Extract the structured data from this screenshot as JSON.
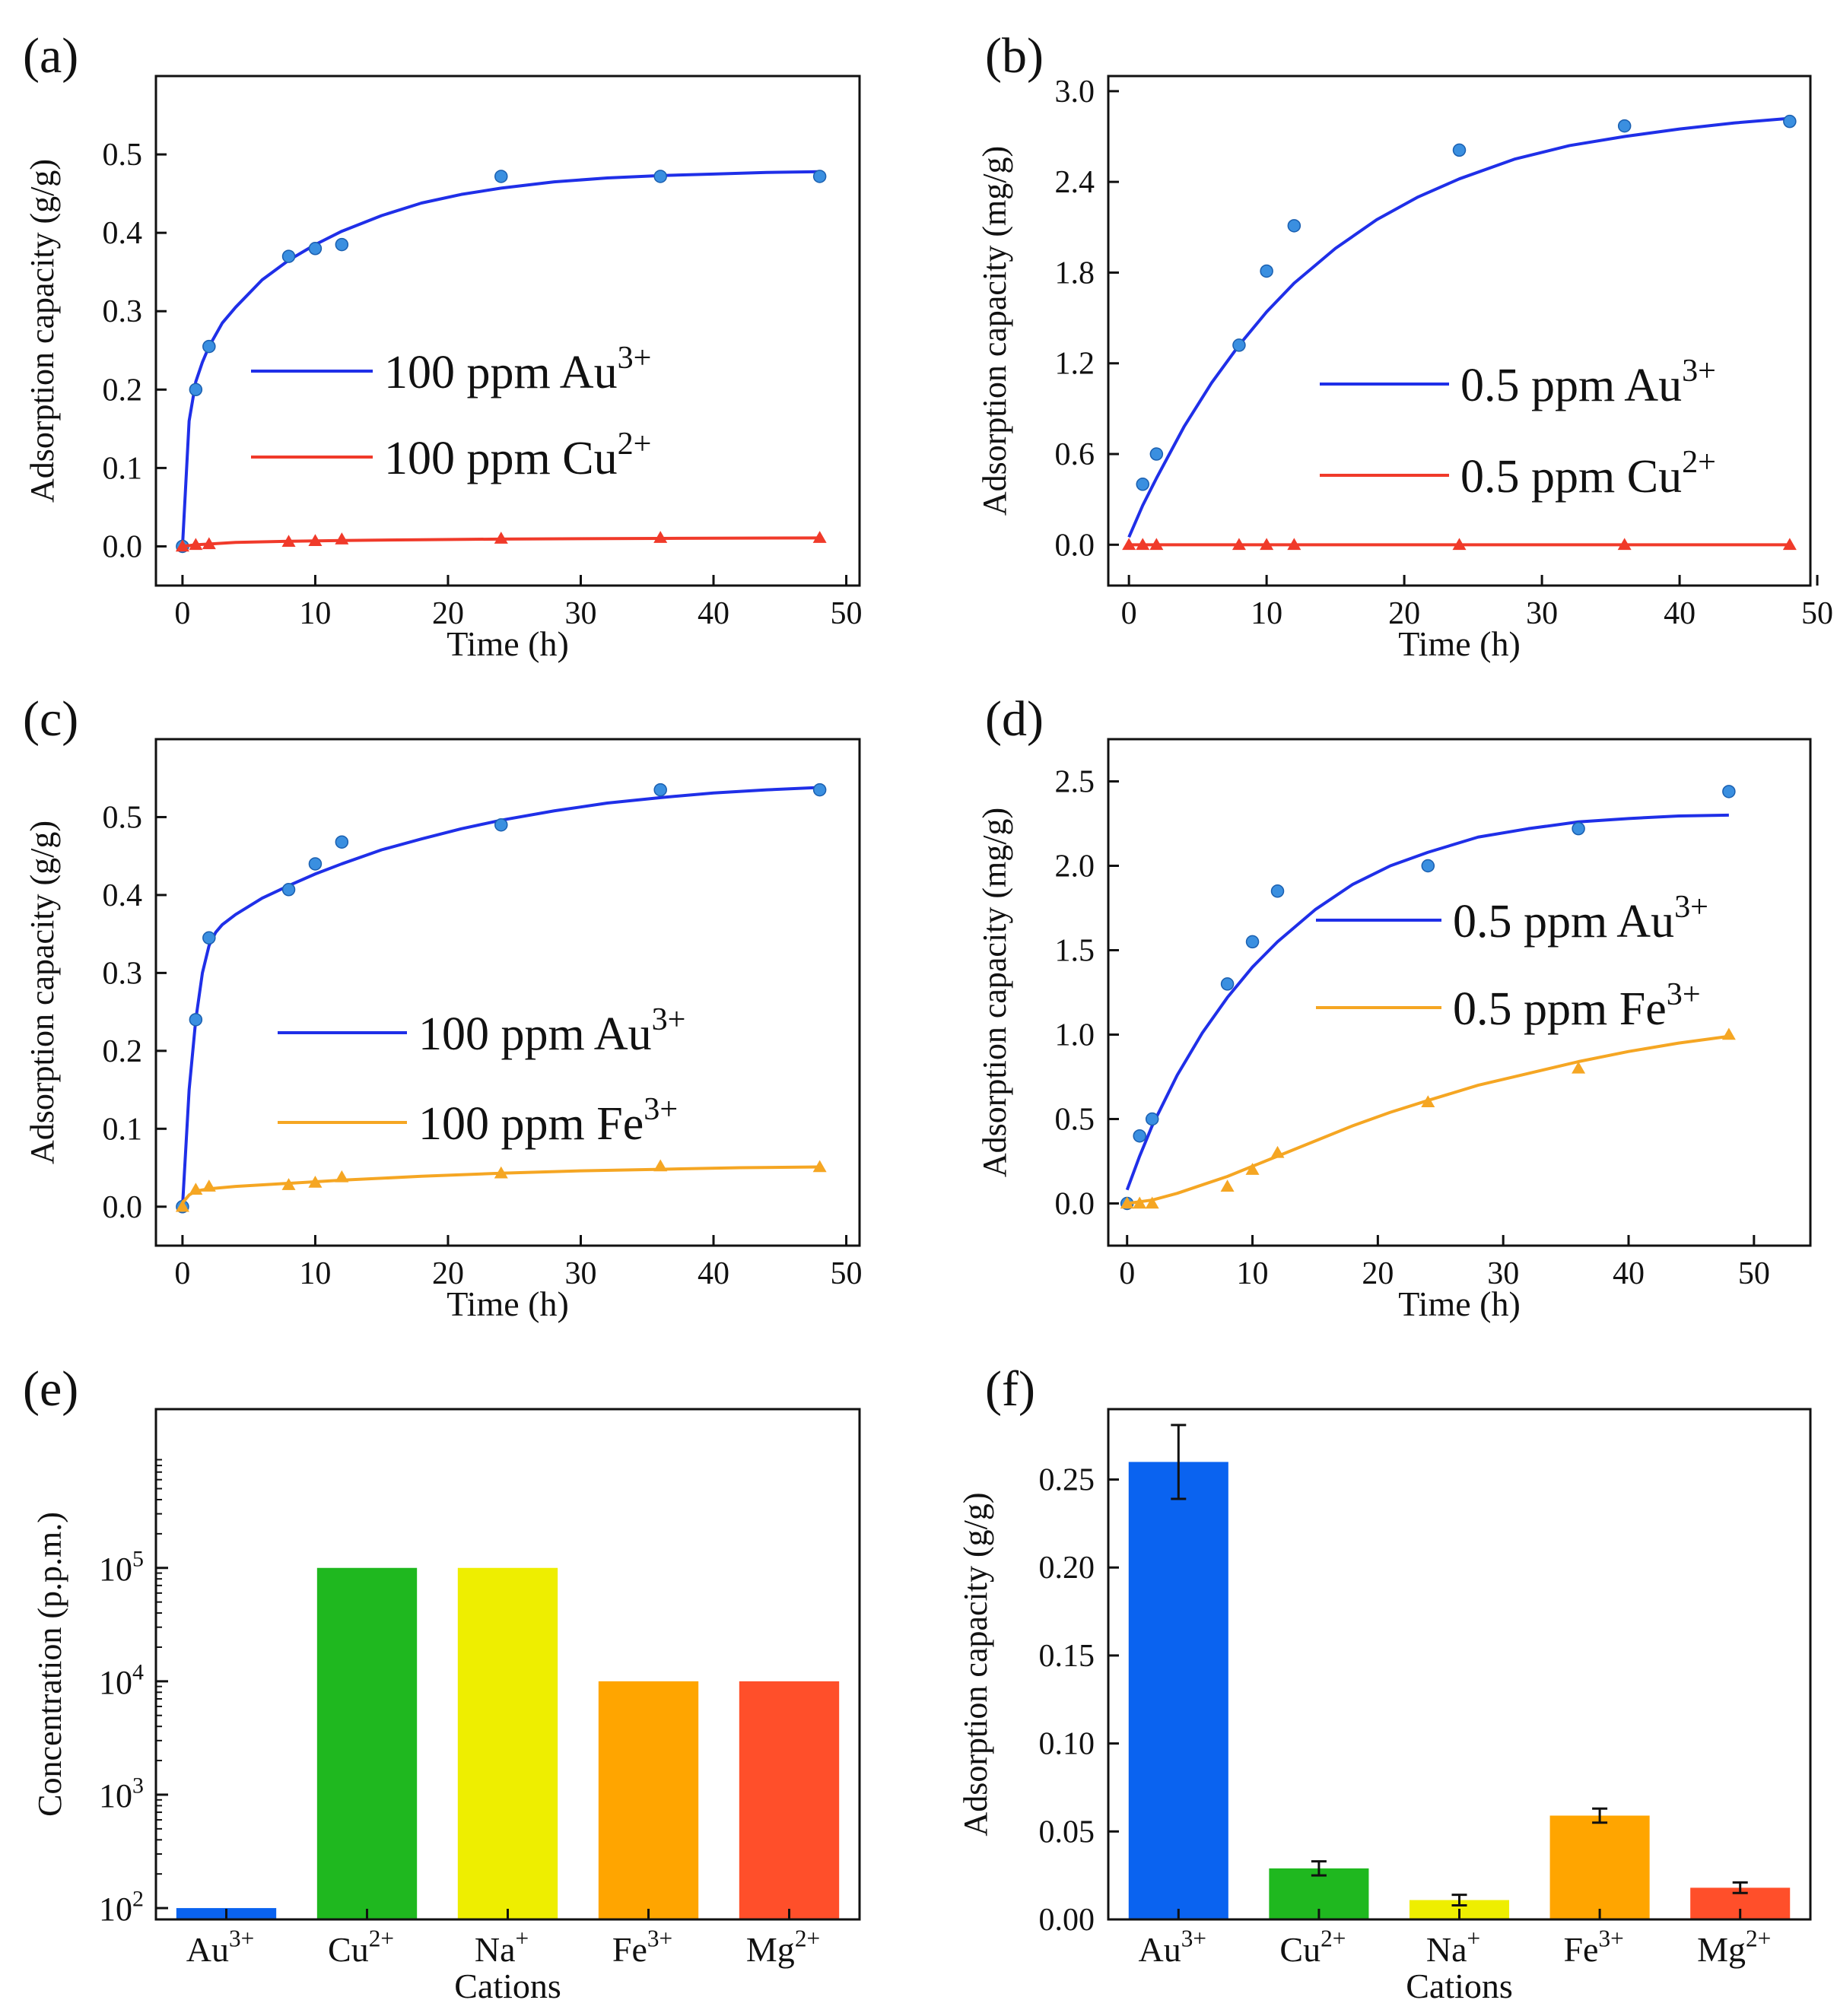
{
  "colors": {
    "blue_line": "#1f2fe8",
    "blue_marker": "#3a8fe0",
    "red": "#f03a2a",
    "orange": "#f5a623",
    "bar_au": "#0a63f0",
    "bar_cu": "#1fb81f",
    "bar_na": "#eeee00",
    "bar_fe": "#ffa500",
    "bar_mg": "#ff4f2a"
  },
  "chart_data": [
    {
      "panel": "(a)",
      "type": "line",
      "xlabel": "Time (h)",
      "ylabel": "Adsorption capacity (g/g)",
      "xlim": [
        -2,
        51
      ],
      "ylim": [
        -0.05,
        0.6
      ],
      "xticks": [
        0,
        10,
        20,
        30,
        40,
        50
      ],
      "yticks": [
        0.0,
        0.1,
        0.2,
        0.3,
        0.4,
        0.5
      ],
      "ytick_labels": [
        "0.0",
        "0.1",
        "0.2",
        "0.3",
        "0.4",
        "0.5"
      ],
      "legend_position": "center-right",
      "series": [
        {
          "name": "100 ppm Au",
          "sup": "3+",
          "color": "blue",
          "marker": "circle",
          "x": [
            0,
            1,
            2,
            8,
            10,
            12,
            24,
            36,
            48
          ],
          "y": [
            0,
            0.2,
            0.255,
            0.37,
            0.38,
            0.385,
            0.472,
            0.472,
            0.472
          ],
          "fit_x": [
            0,
            0.5,
            1,
            1.5,
            2,
            3,
            4,
            6,
            8,
            10,
            12,
            15,
            18,
            21,
            24,
            28,
            32,
            36,
            40,
            44,
            48
          ],
          "fit_y": [
            0,
            0.16,
            0.21,
            0.235,
            0.255,
            0.285,
            0.305,
            0.34,
            0.365,
            0.385,
            0.402,
            0.422,
            0.438,
            0.449,
            0.457,
            0.465,
            0.47,
            0.473,
            0.475,
            0.477,
            0.478
          ]
        },
        {
          "name": "100 ppm Cu",
          "sup": "2+",
          "color": "red",
          "marker": "triangle",
          "x": [
            0,
            1,
            2,
            8,
            10,
            12,
            24,
            36,
            48
          ],
          "y": [
            0,
            0.002,
            0.003,
            0.006,
            0.007,
            0.009,
            0.01,
            0.011,
            0.011
          ],
          "fit_x": [
            0,
            1,
            2,
            4,
            8,
            12,
            18,
            24,
            30,
            36,
            42,
            48
          ],
          "fit_y": [
            0,
            0.002,
            0.003,
            0.005,
            0.0065,
            0.0075,
            0.0085,
            0.0093,
            0.0098,
            0.0102,
            0.0105,
            0.0107
          ]
        }
      ]
    },
    {
      "panel": "(b)",
      "type": "line",
      "xlabel": "Time (h)",
      "ylabel": "Adsorption capacity (mg/g)",
      "xlim": [
        -1.5,
        49.5
      ],
      "ylim": [
        -0.27,
        3.1
      ],
      "xticks": [
        0,
        10,
        20,
        30,
        40,
        50
      ],
      "yticks": [
        0.0,
        0.6,
        1.2,
        1.8,
        2.4,
        3.0
      ],
      "ytick_labels": [
        "0.0",
        "0.6",
        "1.2",
        "1.8",
        "2.4",
        "3.0"
      ],
      "legend_position": "center-right",
      "series": [
        {
          "name": "0.5 ppm Au",
          "sup": "3+",
          "color": "blue",
          "marker": "circle",
          "x": [
            1,
            2,
            8,
            10,
            12,
            24,
            36,
            48
          ],
          "y": [
            0.4,
            0.6,
            1.32,
            1.81,
            2.11,
            2.61,
            2.77,
            2.8
          ],
          "fit_x": [
            0,
            1,
            2,
            4,
            6,
            8,
            10,
            12,
            15,
            18,
            21,
            24,
            28,
            32,
            36,
            40,
            44,
            48
          ],
          "fit_y": [
            0.05,
            0.26,
            0.44,
            0.78,
            1.07,
            1.32,
            1.54,
            1.73,
            1.96,
            2.15,
            2.3,
            2.42,
            2.55,
            2.64,
            2.7,
            2.75,
            2.79,
            2.82
          ]
        },
        {
          "name": "0.5 ppm Cu",
          "sup": "2+",
          "color": "red",
          "marker": "triangle",
          "x": [
            0,
            1,
            2,
            8,
            10,
            12,
            24,
            36,
            48
          ],
          "y": [
            0,
            0,
            0,
            0,
            0,
            0,
            0,
            0,
            0
          ],
          "fit_x": [
            0,
            48
          ],
          "fit_y": [
            0,
            0
          ]
        }
      ]
    },
    {
      "panel": "(c)",
      "type": "line",
      "xlabel": "Time (h)",
      "ylabel": "Adsorption capacity (g/g)",
      "xlim": [
        -2,
        51
      ],
      "ylim": [
        -0.05,
        0.6
      ],
      "xticks": [
        0,
        10,
        20,
        30,
        40,
        50
      ],
      "yticks": [
        0.0,
        0.1,
        0.2,
        0.3,
        0.4,
        0.5
      ],
      "ytick_labels": [
        "0.0",
        "0.1",
        "0.2",
        "0.3",
        "0.4",
        "0.5"
      ],
      "legend_position": "lower-right",
      "series": [
        {
          "name": "100 ppm Au",
          "sup": "3+",
          "color": "blue",
          "marker": "circle",
          "x": [
            0,
            1,
            2,
            8,
            10,
            12,
            24,
            36,
            48
          ],
          "y": [
            0,
            0.24,
            0.345,
            0.407,
            0.44,
            0.468,
            0.49,
            0.535,
            0.535
          ],
          "fit_x": [
            0,
            0.5,
            1,
            1.5,
            2,
            2.5,
            3,
            4,
            6,
            8,
            10,
            12,
            15,
            18,
            21,
            24,
            28,
            32,
            36,
            40,
            44,
            48
          ],
          "fit_y": [
            0,
            0.15,
            0.24,
            0.3,
            0.335,
            0.352,
            0.362,
            0.375,
            0.396,
            0.412,
            0.427,
            0.44,
            0.458,
            0.472,
            0.485,
            0.496,
            0.508,
            0.518,
            0.525,
            0.531,
            0.535,
            0.538
          ]
        },
        {
          "name": "100 ppm Fe",
          "sup": "3+",
          "color": "orange",
          "marker": "triangle",
          "x": [
            0,
            1,
            2,
            8,
            10,
            12,
            24,
            36,
            48
          ],
          "y": [
            0,
            0.022,
            0.026,
            0.028,
            0.031,
            0.038,
            0.043,
            0.052,
            0.051
          ],
          "fit_x": [
            0,
            0.5,
            1,
            2,
            4,
            8,
            12,
            18,
            24,
            30,
            36,
            42,
            48
          ],
          "fit_y": [
            0.005,
            0.015,
            0.02,
            0.023,
            0.026,
            0.03,
            0.034,
            0.039,
            0.043,
            0.046,
            0.048,
            0.05,
            0.051
          ]
        }
      ]
    },
    {
      "panel": "(d)",
      "type": "line",
      "xlabel": "Time (h)",
      "ylabel": "Adsorption capacity (mg/g)",
      "xlim": [
        -1.5,
        54.5
      ],
      "ylim": [
        -0.25,
        2.75
      ],
      "xticks": [
        0,
        10,
        20,
        30,
        40,
        50
      ],
      "yticks": [
        0.0,
        0.5,
        1.0,
        1.5,
        2.0,
        2.5
      ],
      "ytick_labels": [
        "0.0",
        "0.5",
        "1.0",
        "1.5",
        "2.0",
        "2.5"
      ],
      "legend_position": "center-right",
      "series": [
        {
          "name": "0.5 ppm Au",
          "sup": "3+",
          "color": "blue",
          "marker": "circle",
          "x": [
            0,
            1,
            2,
            8,
            10,
            12,
            24,
            36,
            48
          ],
          "y": [
            0,
            0.4,
            0.5,
            1.3,
            1.55,
            1.85,
            2.0,
            2.22,
            2.44
          ],
          "fit_x": [
            0,
            1,
            2,
            4,
            6,
            8,
            10,
            12,
            15,
            18,
            21,
            24,
            28,
            32,
            36,
            40,
            44,
            48
          ],
          "fit_y": [
            0.08,
            0.28,
            0.46,
            0.76,
            1.01,
            1.22,
            1.4,
            1.55,
            1.74,
            1.89,
            2.0,
            2.08,
            2.17,
            2.22,
            2.26,
            2.28,
            2.295,
            2.3
          ]
        },
        {
          "name": "0.5 ppm Fe",
          "sup": "3+",
          "color": "orange",
          "marker": "triangle",
          "x": [
            0,
            1,
            2,
            8,
            10,
            12,
            24,
            36,
            48
          ],
          "y": [
            0,
            0,
            0,
            0.1,
            0.2,
            0.3,
            0.6,
            0.8,
            1.0
          ],
          "fit_x": [
            0,
            2,
            4,
            6,
            8,
            10,
            12,
            15,
            18,
            21,
            24,
            28,
            32,
            36,
            40,
            44,
            48
          ],
          "fit_y": [
            0,
            0.02,
            0.06,
            0.11,
            0.16,
            0.22,
            0.28,
            0.37,
            0.46,
            0.54,
            0.61,
            0.7,
            0.77,
            0.84,
            0.9,
            0.95,
            0.99
          ]
        }
      ]
    },
    {
      "panel": "(e)",
      "type": "bar",
      "scale": "log",
      "xlabel": "Cations",
      "ylabel": "Concentration (p.p.m.)",
      "ylim_log10": [
        1.9,
        6.4
      ],
      "ytick_exponents": [
        2,
        3,
        4,
        5
      ],
      "ytick_base": "10",
      "categories": [
        {
          "label": "Au",
          "sup": "3+",
          "color": "bar_au"
        },
        {
          "label": "Cu",
          "sup": "2+",
          "color": "bar_cu"
        },
        {
          "label": "Na",
          "sup": "+",
          "color": "bar_na"
        },
        {
          "label": "Fe",
          "sup": "3+",
          "color": "bar_fe"
        },
        {
          "label": "Mg",
          "sup": "2+",
          "color": "bar_mg"
        }
      ],
      "values": [
        100,
        100000,
        100000,
        10000,
        10000
      ]
    },
    {
      "panel": "(f)",
      "type": "bar",
      "xlabel": "Cations",
      "ylabel": "Adsorption capacity (g/g)",
      "ylim": [
        0,
        0.29
      ],
      "yticks": [
        0.0,
        0.05,
        0.1,
        0.15,
        0.2,
        0.25
      ],
      "ytick_labels": [
        "0.00",
        "0.05",
        "0.10",
        "0.15",
        "0.20",
        "0.25"
      ],
      "categories": [
        {
          "label": "Au",
          "sup": "3+",
          "color": "bar_au"
        },
        {
          "label": "Cu",
          "sup": "2+",
          "color": "bar_cu"
        },
        {
          "label": "Na",
          "sup": "+",
          "color": "bar_na"
        },
        {
          "label": "Fe",
          "sup": "3+",
          "color": "bar_fe"
        },
        {
          "label": "Mg",
          "sup": "2+",
          "color": "bar_mg"
        }
      ],
      "values": [
        0.26,
        0.029,
        0.011,
        0.059,
        0.018
      ],
      "errors": [
        0.021,
        0.004,
        0.003,
        0.004,
        0.003
      ]
    }
  ]
}
